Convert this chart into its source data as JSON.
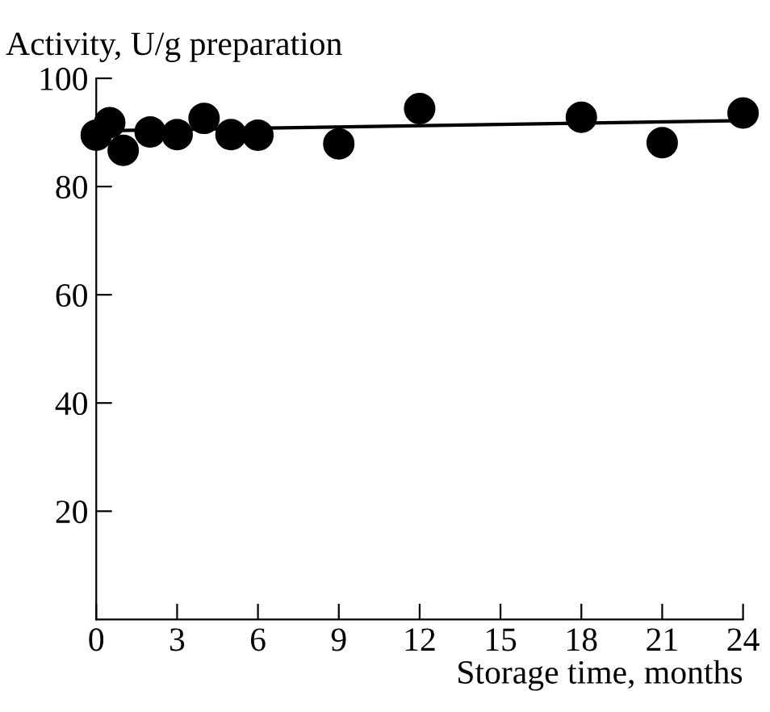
{
  "chart_data": {
    "type": "scatter",
    "xlabel": "Storage time, months",
    "ylabel": "Activity, U/g preparation",
    "xlim": [
      0,
      24
    ],
    "ylim": [
      0,
      100
    ],
    "xticks": [
      0,
      3,
      6,
      9,
      12,
      15,
      18,
      21,
      24
    ],
    "yticks": [
      20,
      40,
      60,
      80,
      100
    ],
    "grid": false,
    "legend": false,
    "series": [
      {
        "color": "#000000",
        "marker": "circle",
        "x": [
          0,
          0.5,
          1,
          2,
          3,
          4,
          5,
          6,
          9,
          12,
          18,
          21,
          24
        ],
        "values": [
          89.5,
          91.8,
          86.7,
          90.1,
          89.6,
          92.6,
          89.6,
          89.5,
          87.9,
          94.4,
          92.8,
          88.1,
          93.6
        ]
      },
      {
        "type": "line",
        "color": "#000000",
        "line_style": "solid",
        "marker": "none",
        "x": [
          0,
          24
        ],
        "values": [
          90.3,
          92.2
        ]
      }
    ]
  }
}
